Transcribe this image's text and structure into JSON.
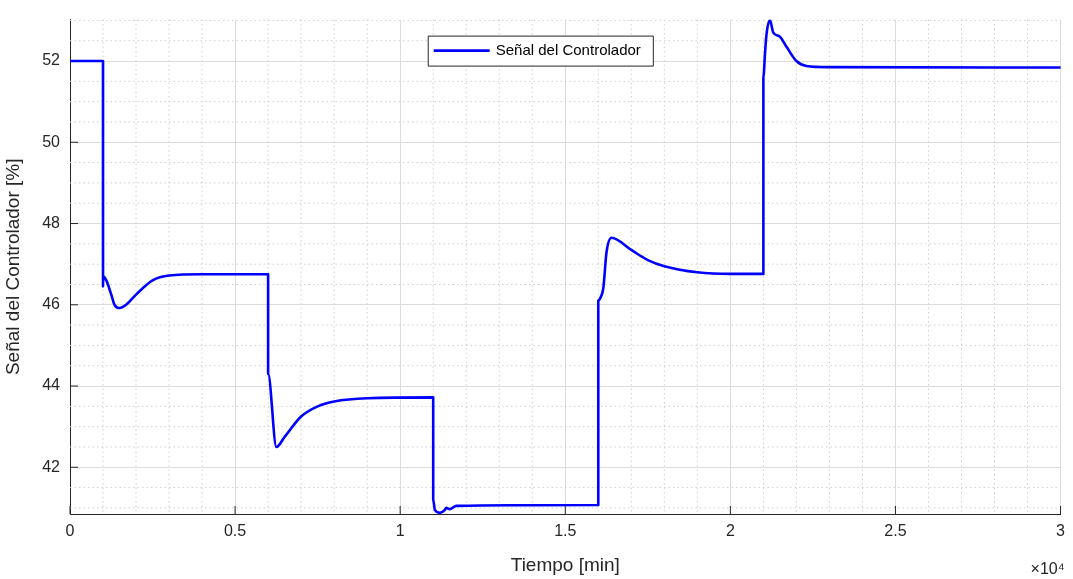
{
  "chart_data": {
    "type": "line",
    "xlabel": "Tiempo [min]",
    "ylabel": "Señal del Controlador [%]",
    "annotations": [
      "×10⁴"
    ],
    "xlim": [
      0,
      3
    ],
    "xticks": [
      0,
      0.5,
      1,
      1.5,
      2,
      2.5,
      3
    ],
    "ylim": [
      40.85,
      53.02
    ],
    "yticks": [
      42,
      44,
      46,
      48,
      50,
      52
    ],
    "grid": true,
    "legend": "top",
    "line_style": "solid",
    "marker": "none",
    "series": [
      {
        "name": "Señal del Controlador",
        "color": "#0000ff",
        "x": [
          0,
          0.1,
          0.1,
          0.1005,
          0.11,
          0.125,
          0.135,
          0.15,
          0.17,
          0.2,
          0.25,
          0.3,
          0.4,
          0.6,
          0.6,
          0.625,
          0.65,
          0.7,
          0.75,
          0.8,
          0.9,
          1.1,
          1.1,
          1.105,
          1.12,
          1.135,
          1.14,
          1.15,
          1.17,
          1.6,
          1.6,
          1.605,
          1.615,
          1.625,
          1.64,
          1.7,
          1.75,
          1.8,
          1.9,
          2.0,
          2.1,
          2.1,
          2.105,
          2.11,
          2.12,
          2.13,
          2.15,
          2.17,
          2.2,
          2.23,
          2.3,
          3.0
        ],
        "values": [
          52,
          52,
          46.45,
          46.7,
          46.6,
          46.25,
          46.0,
          45.92,
          46.0,
          46.25,
          46.6,
          46.72,
          46.75,
          46.75,
          44.3,
          42.5,
          42.75,
          43.25,
          43.5,
          43.62,
          43.7,
          43.72,
          41.2,
          40.95,
          40.88,
          40.95,
          41.0,
          40.97,
          41.05,
          41.07,
          46.1,
          46.15,
          46.4,
          47.3,
          47.65,
          47.35,
          47.1,
          46.95,
          46.8,
          46.76,
          46.76,
          51.6,
          52.2,
          52.7,
          53.0,
          52.7,
          52.6,
          52.35,
          52.0,
          51.88,
          51.85,
          51.84
        ]
      }
    ]
  }
}
